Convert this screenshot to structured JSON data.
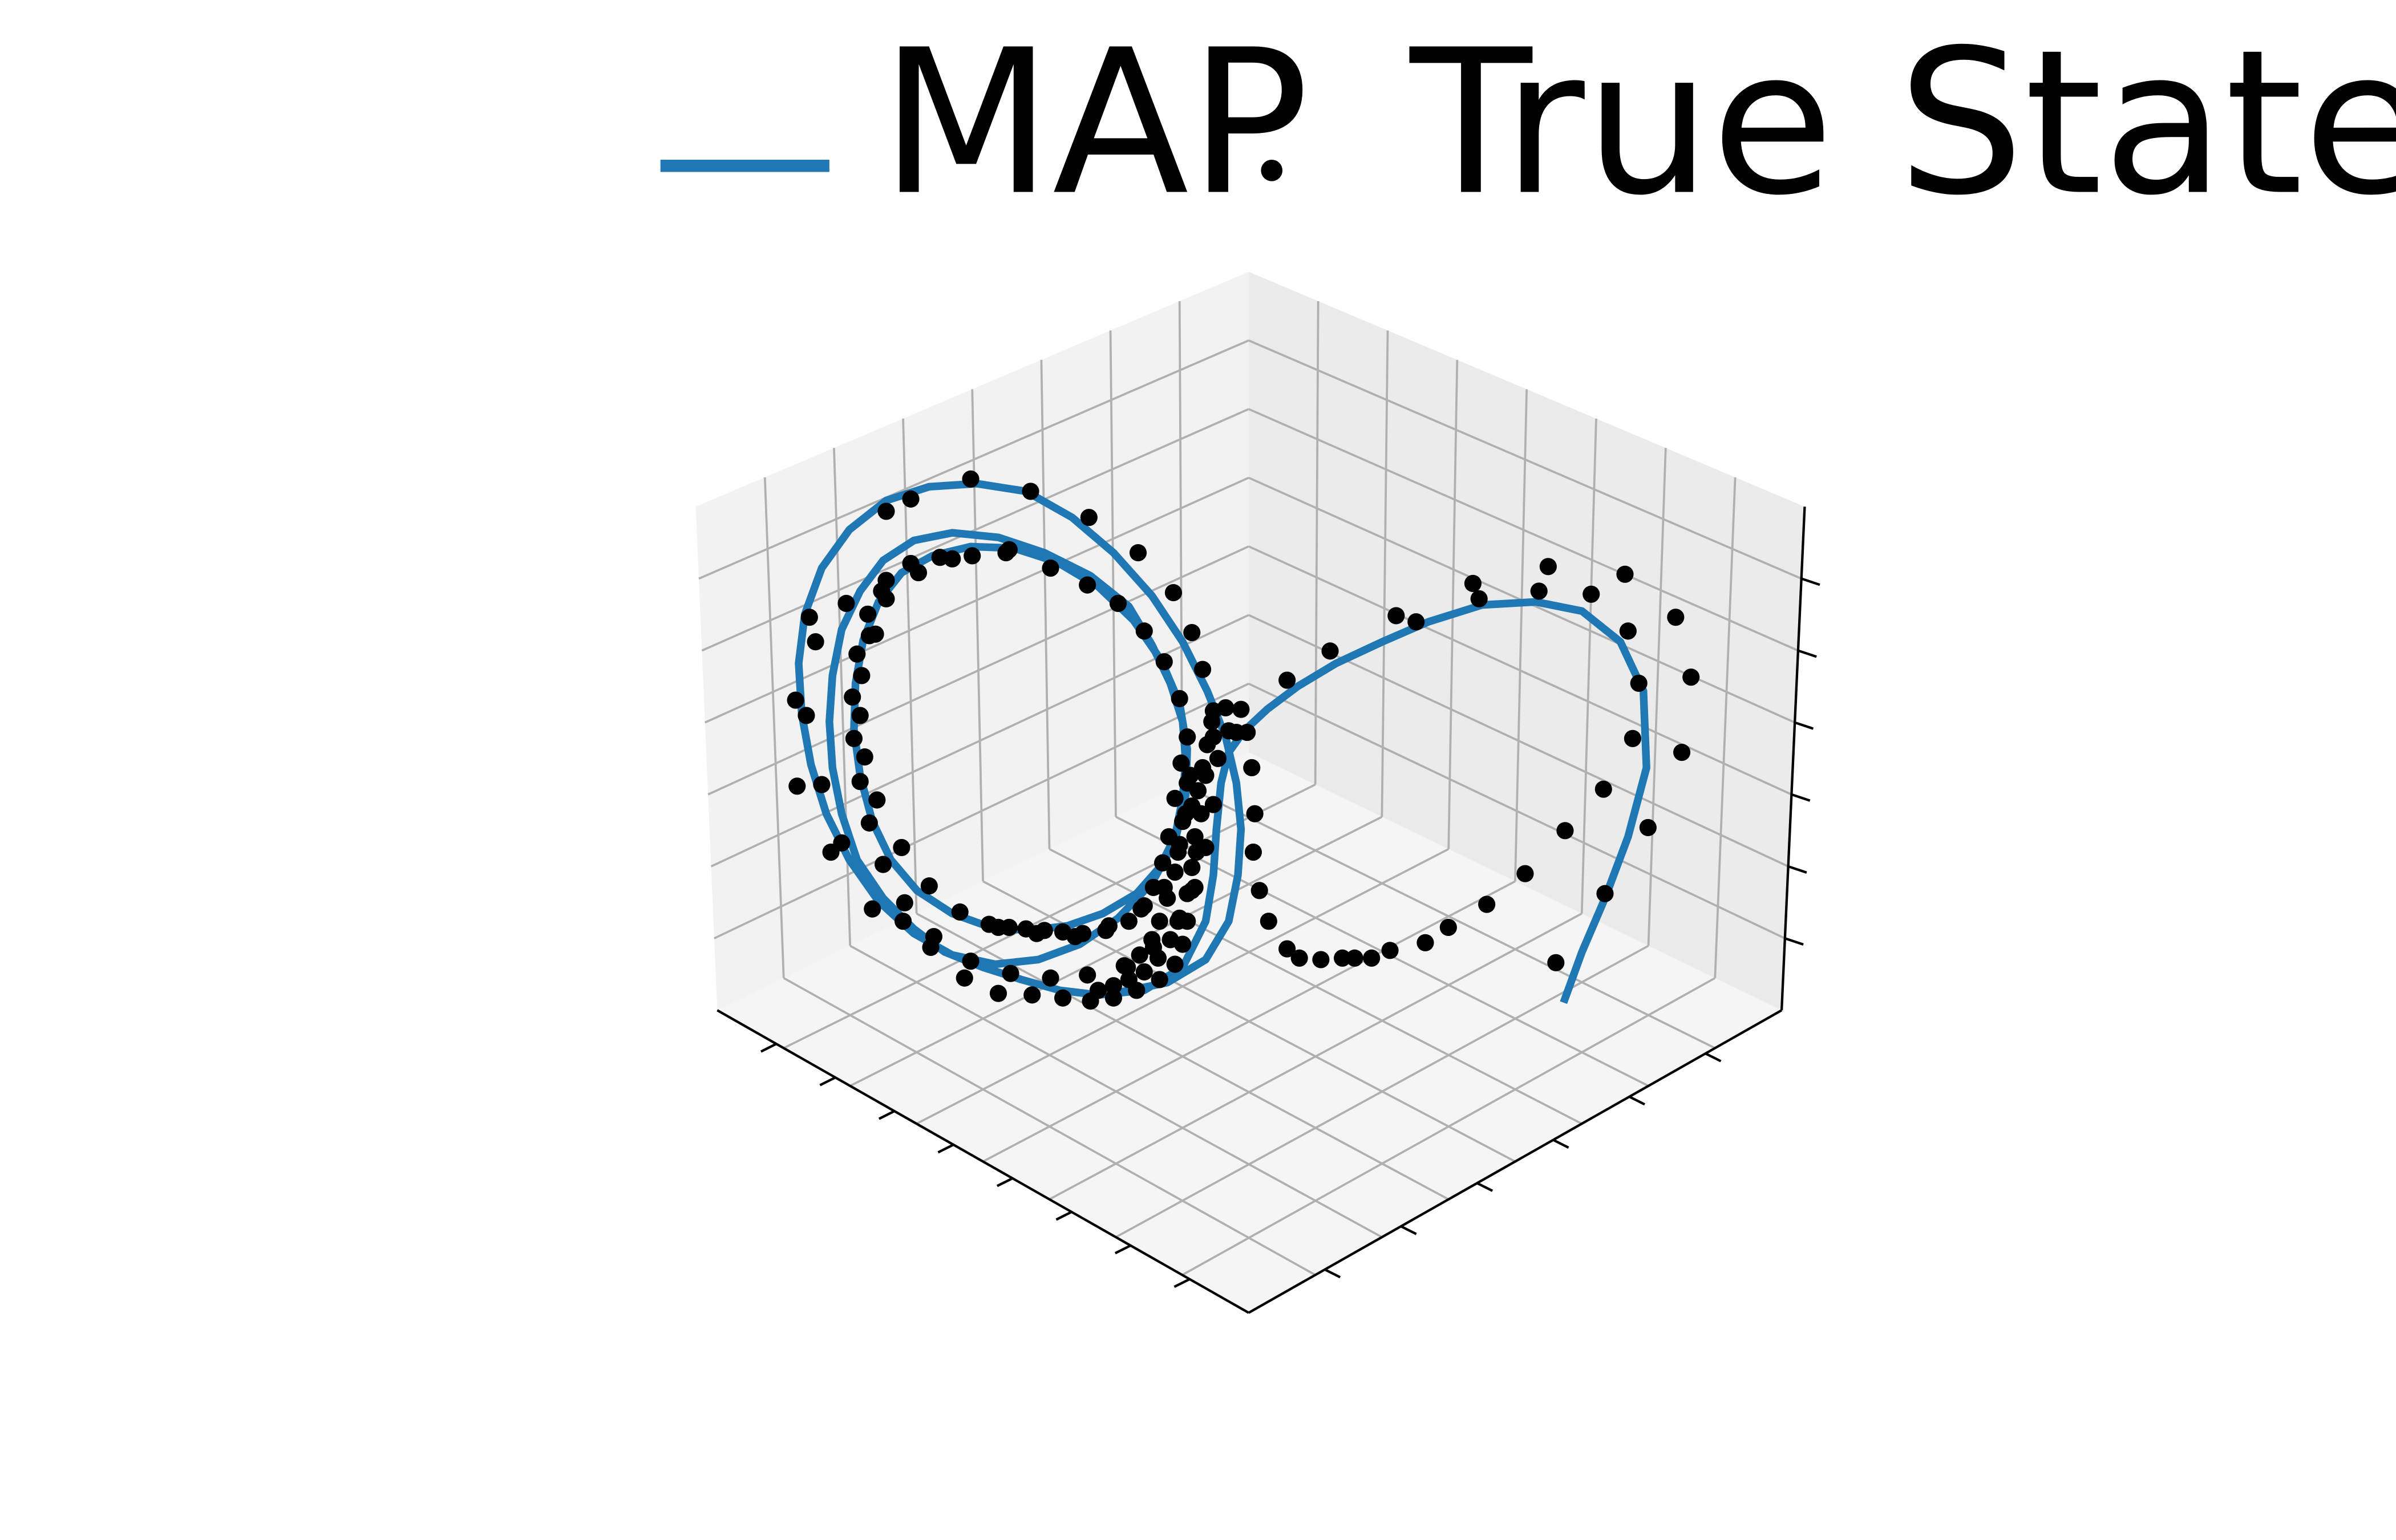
{
  "chart_data": {
    "type": "line",
    "projection": "3d",
    "title": "",
    "xlabel": "",
    "ylabel": "",
    "zlabel": "",
    "grid": true,
    "tick_labels_shown": false,
    "legend_placement": "top-center",
    "colors": {
      "map_line": "#1f77b4",
      "true_state": "#000000",
      "pane_left": "#f2f2f2",
      "pane_right": "#ebebeb",
      "pane_floor": "#f5f5f5",
      "grid": "#b0b0b0",
      "axis": "#000000"
    },
    "series": [
      {
        "name": "MAP",
        "kind": "line",
        "points": [
          [
            1018,
            653
          ],
          [
            1030,
            620
          ],
          [
            1045,
            585
          ],
          [
            1060,
            545
          ],
          [
            1072,
            500
          ],
          [
            1070,
            450
          ],
          [
            1055,
            418
          ],
          [
            1030,
            398
          ],
          [
            1000,
            392
          ],
          [
            965,
            394
          ],
          [
            930,
            405
          ],
          [
            900,
            418
          ],
          [
            870,
            432
          ],
          [
            845,
            447
          ],
          [
            825,
            462
          ],
          [
            810,
            476
          ],
          [
            800,
            490
          ],
          [
            795,
            510
          ],
          [
            792,
            540
          ],
          [
            790,
            570
          ],
          [
            785,
            600
          ],
          [
            770,
            630
          ],
          [
            745,
            645
          ],
          [
            715,
            648
          ],
          [
            690,
            645
          ],
          [
            665,
            638
          ],
          [
            640,
            630
          ],
          [
            615,
            620
          ],
          [
            595,
            605
          ],
          [
            575,
            585
          ],
          [
            558,
            560
          ],
          [
            548,
            530
          ],
          [
            542,
            500
          ],
          [
            540,
            470
          ],
          [
            542,
            440
          ],
          [
            548,
            410
          ],
          [
            560,
            385
          ],
          [
            575,
            365
          ],
          [
            595,
            352
          ],
          [
            620,
            347
          ],
          [
            650,
            350
          ],
          [
            680,
            360
          ],
          [
            710,
            375
          ],
          [
            735,
            395
          ],
          [
            750,
            420
          ],
          [
            762,
            445
          ],
          [
            770,
            470
          ],
          [
            772,
            495
          ],
          [
            770,
            520
          ],
          [
            765,
            545
          ],
          [
            755,
            565
          ],
          [
            740,
            582
          ],
          [
            718,
            595
          ],
          [
            695,
            603
          ],
          [
            670,
            606
          ],
          [
            645,
            604
          ],
          [
            620,
            595
          ],
          [
            597,
            580
          ],
          [
            580,
            560
          ],
          [
            568,
            535
          ],
          [
            560,
            505
          ],
          [
            556,
            475
          ],
          [
            557,
            445
          ],
          [
            562,
            417
          ],
          [
            572,
            392
          ],
          [
            587,
            373
          ],
          [
            607,
            362
          ],
          [
            632,
            356
          ],
          [
            660,
            357
          ],
          [
            688,
            366
          ],
          [
            715,
            382
          ],
          [
            738,
            404
          ],
          [
            756,
            430
          ],
          [
            768,
            458
          ],
          [
            773,
            488
          ],
          [
            772,
            518
          ],
          [
            765,
            548
          ],
          [
            750,
            575
          ],
          [
            728,
            598
          ],
          [
            703,
            615
          ],
          [
            676,
            625
          ],
          [
            648,
            628
          ],
          [
            620,
            622
          ],
          [
            595,
            608
          ],
          [
            572,
            587
          ],
          [
            553,
            560
          ],
          [
            538,
            530
          ],
          [
            528,
            498
          ],
          [
            522,
            465
          ],
          [
            520,
            432
          ],
          [
            524,
            400
          ],
          [
            535,
            370
          ],
          [
            553,
            345
          ],
          [
            577,
            326
          ],
          [
            605,
            317
          ],
          [
            636,
            315
          ],
          [
            668,
            320
          ],
          [
            698,
            337
          ],
          [
            725,
            360
          ],
          [
            750,
            388
          ],
          [
            770,
            418
          ],
          [
            786,
            450
          ],
          [
            798,
            480
          ],
          [
            805,
            510
          ],
          [
            808,
            540
          ],
          [
            806,
            570
          ],
          [
            800,
            600
          ],
          [
            785,
            625
          ],
          [
            760,
            640
          ],
          [
            730,
            646
          ]
        ]
      },
      {
        "name": "True State",
        "kind": "scatter",
        "points": [
          [
            1013,
            627
          ],
          [
            1045,
            582
          ],
          [
            1073,
            539
          ],
          [
            1095,
            490
          ],
          [
            1101,
            441
          ],
          [
            1091,
            402
          ],
          [
            1058,
            374
          ],
          [
            1036,
            387
          ],
          [
            1008,
            369
          ],
          [
            959,
            380
          ],
          [
            1002,
            385
          ],
          [
            963,
            390
          ],
          [
            922,
            405
          ],
          [
            909,
            401
          ],
          [
            866,
            424
          ],
          [
            838,
            443
          ],
          [
            812,
            477
          ],
          [
            798,
            461
          ],
          [
            805,
            477
          ],
          [
            815,
            500
          ],
          [
            817,
            530
          ],
          [
            816,
            555
          ],
          [
            820,
            580
          ],
          [
            826,
            600
          ],
          [
            838,
            618
          ],
          [
            860,
            625
          ],
          [
            882,
            624
          ],
          [
            905,
            619
          ],
          [
            928,
            614
          ],
          [
            943,
            604
          ],
          [
            968,
            589
          ],
          [
            993,
            569
          ],
          [
            1019,
            541
          ],
          [
            1044,
            514
          ],
          [
            1063,
            481
          ],
          [
            1067,
            445
          ],
          [
            1060,
            411
          ],
          [
            790,
            480
          ],
          [
            785,
            505
          ],
          [
            782,
            530
          ],
          [
            779,
            555
          ],
          [
            776,
            580
          ],
          [
            773,
            600
          ],
          [
            770,
            615
          ],
          [
            765,
            628
          ],
          [
            755,
            638
          ],
          [
            740,
            645
          ],
          [
            725,
            650
          ],
          [
            710,
            652
          ],
          [
            692,
            650
          ],
          [
            672,
            648
          ],
          [
            650,
            647
          ],
          [
            628,
            637
          ],
          [
            606,
            617
          ],
          [
            588,
            600
          ],
          [
            568,
            592
          ],
          [
            541,
            555
          ],
          [
            548,
            549
          ],
          [
            535,
            511
          ],
          [
            519,
            512
          ],
          [
            518,
            456
          ],
          [
            525,
            466
          ],
          [
            531,
            418
          ],
          [
            527,
            402
          ],
          [
            551,
            393
          ],
          [
            570,
            413
          ],
          [
            574,
            385
          ],
          [
            577,
            333
          ],
          [
            593,
            325
          ],
          [
            632,
            312
          ],
          [
            671,
            320
          ],
          [
            709,
            337
          ],
          [
            741,
            360
          ],
          [
            764,
            386
          ],
          [
            776,
            412
          ],
          [
            783,
            436
          ],
          [
            790,
            463
          ],
          [
            793,
            494
          ],
          [
            790,
            524
          ],
          [
            785,
            552
          ],
          [
            778,
            578
          ],
          [
            767,
            600
          ],
          [
            751,
            617
          ],
          [
            732,
            629
          ],
          [
            708,
            635
          ],
          [
            684,
            637
          ],
          [
            658,
            634
          ],
          [
            632,
            626
          ],
          [
            608,
            610
          ],
          [
            589,
            588
          ],
          [
            575,
            563
          ],
          [
            566,
            536
          ],
          [
            560,
            509
          ],
          [
            556,
            481
          ],
          [
            555,
            454
          ],
          [
            558,
            426
          ],
          [
            565,
            400
          ],
          [
            577,
            378
          ],
          [
            593,
            367
          ],
          [
            612,
            363
          ],
          [
            633,
            362
          ],
          [
            655,
            360
          ],
          [
            684,
            370
          ],
          [
            708,
            381
          ],
          [
            728,
            393
          ],
          [
            745,
            411
          ],
          [
            758,
            431
          ],
          [
            768,
            455
          ],
          [
            773,
            480
          ],
          [
            775,
            505
          ],
          [
            772,
            530
          ],
          [
            767,
            555
          ],
          [
            758,
            578
          ],
          [
            743,
            592
          ],
          [
            722,
            603
          ],
          [
            700,
            610
          ],
          [
            675,
            608
          ],
          [
            650,
            604
          ],
          [
            625,
            594
          ],
          [
            605,
            577
          ],
          [
            587,
            552
          ],
          [
            571,
            521
          ],
          [
            563,
            493
          ],
          [
            560,
            466
          ],
          [
            561,
            440
          ],
          [
            566,
            414
          ],
          [
            577,
            390
          ],
          [
            598,
            373
          ],
          [
            620,
            364
          ],
          [
            657,
            358
          ],
          [
            769,
            497
          ],
          [
            765,
            520
          ],
          [
            761,
            545
          ],
          [
            757,
            562
          ],
          [
            751,
            578
          ],
          [
            745,
            590
          ],
          [
            735,
            600
          ],
          [
            720,
            606
          ],
          [
            705,
            608
          ],
          [
            692,
            607
          ],
          [
            680,
            606
          ],
          [
            668,
            605
          ],
          [
            657,
            604
          ],
          [
            644,
            602
          ],
          [
            773,
            510
          ],
          [
            776,
            525
          ],
          [
            778,
            545
          ],
          [
            776,
            565
          ],
          [
            773,
            582
          ],
          [
            768,
            598
          ],
          [
            762,
            612
          ],
          [
            754,
            624
          ],
          [
            745,
            633
          ],
          [
            735,
            638
          ],
          [
            725,
            642
          ],
          [
            715,
            645
          ],
          [
            770,
            535
          ],
          [
            768,
            550
          ],
          [
            765,
            568
          ],
          [
            760,
            585
          ],
          [
            755,
            600
          ],
          [
            750,
            612
          ],
          [
            742,
            622
          ],
          [
            734,
            630
          ],
          [
            780,
            515
          ],
          [
            783,
            500
          ],
          [
            786,
            485
          ],
          [
            789,
            470
          ],
          [
            800,
            476
          ],
          [
            808,
            462
          ],
          [
            846,
            624
          ],
          [
            874,
            624
          ],
          [
            893,
            624
          ]
        ]
      }
    ]
  }
}
